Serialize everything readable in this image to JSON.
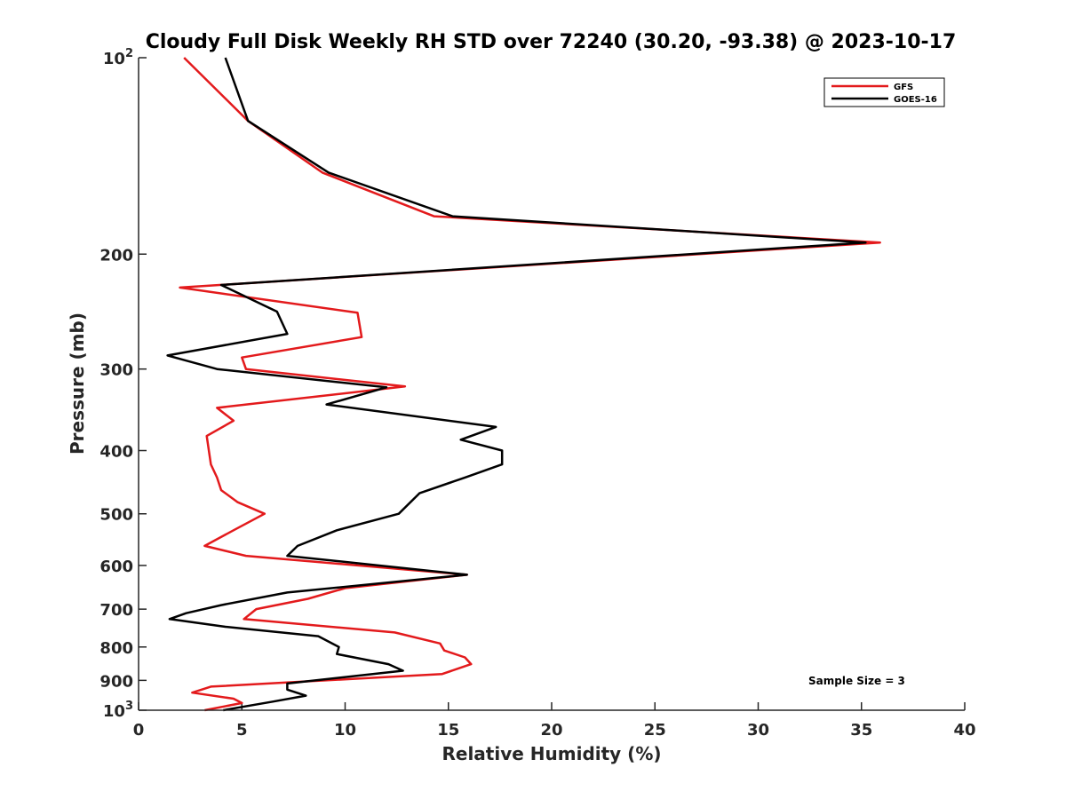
{
  "chart_data": {
    "type": "line",
    "title": "Cloudy Full Disk Weekly RH STD over 72240 (30.20, -93.38) @ 2023-10-17",
    "xlabel": "Relative Humidity (%)",
    "ylabel": "Pressure (mb)",
    "xlim": [
      0,
      40
    ],
    "ylim": [
      100,
      1000
    ],
    "yscale": "log",
    "yreversed": true,
    "grid": false,
    "legend_position": "top-right",
    "x_ticks": [
      0,
      5,
      10,
      15,
      20,
      25,
      30,
      35,
      40
    ],
    "x_tick_labels": [
      "0",
      "5",
      "10",
      "15",
      "20",
      "25",
      "30",
      "35",
      "40"
    ],
    "y_ticks": [
      {
        "value": 100,
        "base": "10",
        "exp": "2"
      },
      {
        "value": 200,
        "label": "200"
      },
      {
        "value": 300,
        "label": "300"
      },
      {
        "value": 400,
        "label": "400"
      },
      {
        "value": 500,
        "label": "500"
      },
      {
        "value": 600,
        "label": "600"
      },
      {
        "value": 700,
        "label": "700"
      },
      {
        "value": 800,
        "label": "800"
      },
      {
        "value": 900,
        "label": "900"
      },
      {
        "value": 1000,
        "base": "10",
        "exp": "3"
      }
    ],
    "series": [
      {
        "name": "GFS",
        "color": "#e31a1c",
        "points": [
          [
            2.2,
            100
          ],
          [
            5.3,
            125
          ],
          [
            8.9,
            150
          ],
          [
            14.3,
            175
          ],
          [
            35.9,
            192
          ],
          [
            2.0,
            225
          ],
          [
            10.6,
            246
          ],
          [
            10.8,
            268
          ],
          [
            5.0,
            288
          ],
          [
            5.2,
            300
          ],
          [
            12.9,
            319
          ],
          [
            3.8,
            344
          ],
          [
            4.6,
            360
          ],
          [
            3.3,
            380
          ],
          [
            3.4,
            400
          ],
          [
            3.5,
            420
          ],
          [
            3.8,
            440
          ],
          [
            4.0,
            460
          ],
          [
            4.8,
            480
          ],
          [
            6.1,
            500
          ],
          [
            4.6,
            530
          ],
          [
            3.2,
            560
          ],
          [
            5.2,
            580
          ],
          [
            15.9,
            620
          ],
          [
            10.0,
            650
          ],
          [
            8.2,
            675
          ],
          [
            5.7,
            700
          ],
          [
            5.1,
            725
          ],
          [
            12.4,
            760
          ],
          [
            14.6,
            790
          ],
          [
            14.8,
            810
          ],
          [
            15.8,
            830
          ],
          [
            16.1,
            850
          ],
          [
            14.7,
            880
          ],
          [
            3.5,
            920
          ],
          [
            2.6,
            940
          ],
          [
            4.6,
            960
          ],
          [
            5.0,
            975
          ],
          [
            3.2,
            1000
          ]
        ]
      },
      {
        "name": "GOES-16",
        "color": "#000000",
        "points": [
          [
            4.2,
            100
          ],
          [
            5.3,
            125
          ],
          [
            9.2,
            150
          ],
          [
            15.2,
            175
          ],
          [
            35.2,
            192
          ],
          [
            4.0,
            223
          ],
          [
            6.7,
            245
          ],
          [
            7.2,
            265
          ],
          [
            1.4,
            286
          ],
          [
            3.8,
            300
          ],
          [
            12.0,
            320
          ],
          [
            9.1,
            340
          ],
          [
            17.3,
            368
          ],
          [
            15.6,
            385
          ],
          [
            17.6,
            400
          ],
          [
            17.6,
            420
          ],
          [
            15.8,
            440
          ],
          [
            13.6,
            465
          ],
          [
            12.6,
            500
          ],
          [
            9.6,
            530
          ],
          [
            7.7,
            560
          ],
          [
            7.2,
            580
          ],
          [
            15.9,
            620
          ],
          [
            7.2,
            660
          ],
          [
            4.0,
            690
          ],
          [
            2.3,
            710
          ],
          [
            1.5,
            725
          ],
          [
            4.2,
            745
          ],
          [
            8.7,
            770
          ],
          [
            9.7,
            800
          ],
          [
            9.6,
            820
          ],
          [
            12.1,
            850
          ],
          [
            12.8,
            870
          ],
          [
            7.2,
            910
          ],
          [
            7.2,
            930
          ],
          [
            8.1,
            950
          ],
          [
            6.5,
            970
          ],
          [
            4.1,
            1000
          ]
        ]
      }
    ],
    "annotations": [
      {
        "text": "Sample Size = 3",
        "position": "bottom-right"
      }
    ]
  }
}
